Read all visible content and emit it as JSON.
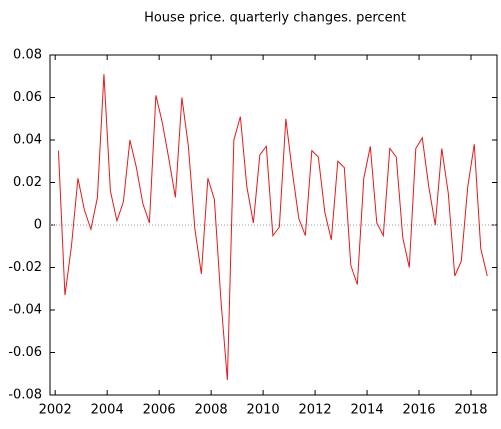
{
  "chart_data": {
    "type": "line",
    "title": "House price. quarterly changes. percent",
    "x": [
      2002.125,
      2002.375,
      2002.625,
      2002.875,
      2003.125,
      2003.375,
      2003.625,
      2003.875,
      2004.125,
      2004.375,
      2004.625,
      2004.875,
      2005.125,
      2005.375,
      2005.625,
      2005.875,
      2006.125,
      2006.375,
      2006.625,
      2006.875,
      2007.125,
      2007.375,
      2007.625,
      2007.875,
      2008.125,
      2008.375,
      2008.625,
      2008.875,
      2009.125,
      2009.375,
      2009.625,
      2009.875,
      2010.125,
      2010.375,
      2010.625,
      2010.875,
      2011.125,
      2011.375,
      2011.625,
      2011.875,
      2012.125,
      2012.375,
      2012.625,
      2012.875,
      2013.125,
      2013.375,
      2013.625,
      2013.875,
      2014.125,
      2014.375,
      2014.625,
      2014.875,
      2015.125,
      2015.375,
      2015.625,
      2015.875,
      2016.125,
      2016.375,
      2016.625,
      2016.875,
      2017.125,
      2017.375,
      2017.625,
      2017.875,
      2018.125,
      2018.375,
      2018.625
    ],
    "values": [
      0.035,
      -0.033,
      -0.01,
      0.022,
      0.007,
      -0.002,
      0.013,
      0.071,
      0.016,
      0.002,
      0.011,
      0.04,
      0.027,
      0.01,
      0.001,
      0.061,
      0.048,
      0.031,
      0.013,
      0.06,
      0.037,
      -0.002,
      -0.023,
      0.022,
      0.012,
      -0.035,
      -0.073,
      0.04,
      0.051,
      0.018,
      0.001,
      0.033,
      0.037,
      -0.005,
      -0.001,
      0.05,
      0.025,
      0.003,
      -0.005,
      0.035,
      0.032,
      0.006,
      -0.007,
      0.03,
      0.027,
      -0.019,
      -0.028,
      0.022,
      0.037,
      0.001,
      -0.005,
      0.036,
      0.032,
      -0.006,
      -0.02,
      0.036,
      0.041,
      0.018,
      0,
      0.036,
      0.015,
      -0.024,
      -0.017,
      0.018,
      0.038,
      -0.011,
      -0.024
    ],
    "color": "#e41a1c",
    "xlim": [
      2001.8,
      2019
    ],
    "xticks": [
      2002,
      2004,
      2006,
      2008,
      2010,
      2012,
      2014,
      2016,
      2018
    ],
    "ylim": [
      -0.08,
      0.08
    ],
    "yticks": [
      -0.08,
      -0.06,
      -0.04,
      -0.02,
      0,
      0.02,
      0.04,
      0.06,
      0.08
    ]
  }
}
